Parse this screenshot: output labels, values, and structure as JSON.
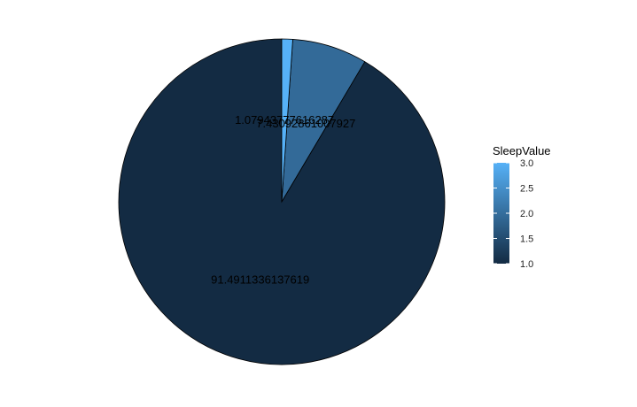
{
  "chart_data": {
    "type": "pie",
    "title": "",
    "slices": [
      {
        "sleep_value": 1,
        "percent": 91.4911336137619,
        "label": "91.4911336137619",
        "color": "#132B43"
      },
      {
        "sleep_value": 2,
        "percent": 7.43092861007927,
        "label": "7.43092861007927",
        "color": "#336A98"
      },
      {
        "sleep_value": 3,
        "percent": 1.07943777616287,
        "label": "1.07943777616287",
        "color": "#56B1F7"
      }
    ],
    "legend": {
      "title": "SleepValue",
      "placement": "right",
      "gradient_low": "#132B43",
      "gradient_high": "#56B1F7",
      "range": [
        1.0,
        3.0
      ],
      "ticks": [
        "1.0",
        "1.5",
        "2.0",
        "2.5",
        "3.0"
      ]
    },
    "slice_outline": "#000000",
    "grid": false
  }
}
